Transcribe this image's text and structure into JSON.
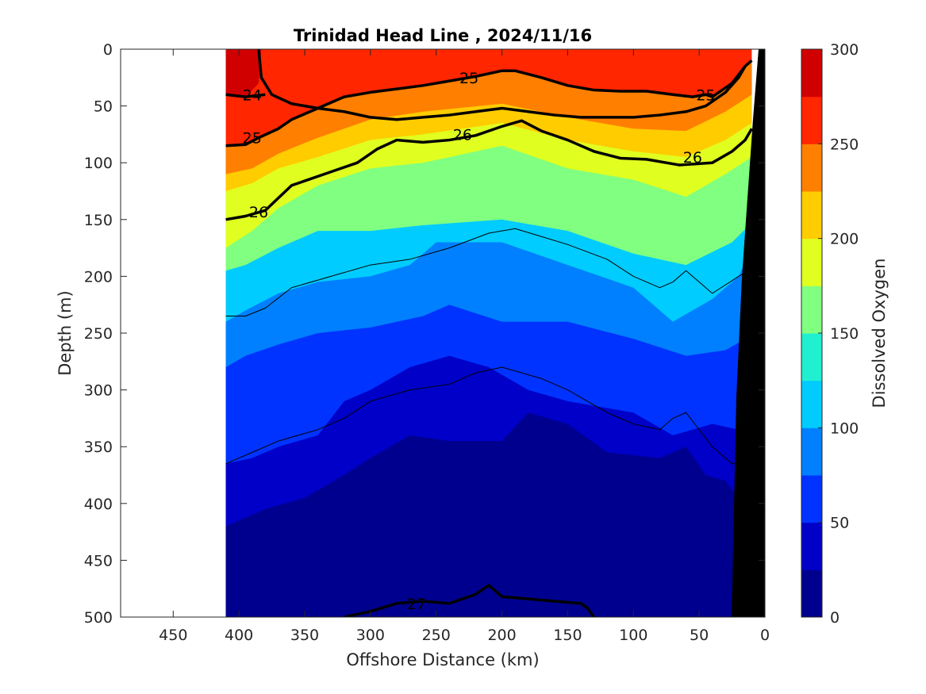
{
  "chart_data": {
    "type": "contour",
    "title": "Trinidad Head Line , 2024/11/16",
    "xlabel": "Offshore Distance (km)",
    "ylabel": "Depth (m)",
    "x_reversed": true,
    "y_reversed": true,
    "xlim": [
      0,
      490
    ],
    "ylim": [
      0,
      500
    ],
    "x_ticks": [
      450,
      400,
      350,
      300,
      250,
      200,
      150,
      100,
      50,
      0
    ],
    "y_ticks": [
      0,
      50,
      100,
      150,
      200,
      250,
      300,
      350,
      400,
      450,
      500
    ],
    "data_extent_km": [
      10,
      410
    ],
    "colorbar": {
      "label": "Dissolved Oxygen",
      "range": [
        0,
        300
      ],
      "ticks": [
        0,
        50,
        100,
        150,
        200,
        250,
        300
      ],
      "levels": [
        0,
        25,
        50,
        75,
        100,
        125,
        150,
        175,
        200,
        225,
        250,
        275,
        300
      ],
      "colors": [
        "#00008f",
        "#0000c8",
        "#0033ff",
        "#0080ff",
        "#00ccff",
        "#20f0d0",
        "#80ff80",
        "#e0ff20",
        "#ffcc00",
        "#ff7f00",
        "#ff2600",
        "#d00000"
      ]
    },
    "oxygen_contours": [
      {
        "level": 125,
        "points": [
          [
            410,
            195
          ],
          [
            395,
            190
          ],
          [
            370,
            175
          ],
          [
            340,
            160
          ],
          [
            300,
            160
          ],
          [
            260,
            155
          ],
          [
            200,
            150
          ],
          [
            150,
            160
          ],
          [
            100,
            180
          ],
          [
            60,
            190
          ],
          [
            25,
            170
          ],
          [
            12,
            155
          ]
        ]
      },
      {
        "level": 100,
        "points": [
          [
            410,
            240
          ],
          [
            395,
            230
          ],
          [
            370,
            215
          ],
          [
            340,
            205
          ],
          [
            300,
            200
          ],
          [
            270,
            190
          ],
          [
            250,
            170
          ],
          [
            200,
            170
          ],
          [
            150,
            190
          ],
          [
            100,
            210
          ],
          [
            70,
            240
          ],
          [
            40,
            220
          ],
          [
            20,
            200
          ],
          [
            12,
            180
          ]
        ]
      },
      {
        "level": 75,
        "points": [
          [
            410,
            280
          ],
          [
            395,
            270
          ],
          [
            370,
            260
          ],
          [
            340,
            250
          ],
          [
            300,
            245
          ],
          [
            260,
            235
          ],
          [
            240,
            225
          ],
          [
            200,
            240
          ],
          [
            150,
            240
          ],
          [
            100,
            255
          ],
          [
            60,
            270
          ],
          [
            30,
            265
          ],
          [
            15,
            255
          ],
          [
            12,
            250
          ]
        ]
      },
      {
        "level": 50,
        "points": [
          [
            410,
            365
          ],
          [
            390,
            360
          ],
          [
            370,
            350
          ],
          [
            340,
            340
          ],
          [
            320,
            310
          ],
          [
            300,
            300
          ],
          [
            270,
            280
          ],
          [
            240,
            270
          ],
          [
            210,
            280
          ],
          [
            180,
            300
          ],
          [
            150,
            310
          ],
          [
            100,
            320
          ],
          [
            70,
            340
          ],
          [
            40,
            330
          ],
          [
            20,
            335
          ],
          [
            12,
            340
          ]
        ]
      },
      {
        "level": 25,
        "points": [
          [
            410,
            420
          ],
          [
            380,
            405
          ],
          [
            350,
            395
          ],
          [
            320,
            375
          ],
          [
            300,
            360
          ],
          [
            270,
            340
          ],
          [
            240,
            345
          ],
          [
            200,
            345
          ],
          [
            180,
            320
          ],
          [
            150,
            330
          ],
          [
            120,
            355
          ],
          [
            80,
            360
          ],
          [
            60,
            350
          ],
          [
            45,
            375
          ],
          [
            30,
            380
          ],
          [
            20,
            395
          ],
          [
            15,
            420
          ]
        ]
      },
      {
        "level": 0,
        "points": [
          [
            330,
            500
          ],
          [
            300,
            495
          ],
          [
            270,
            490
          ],
          [
            230,
            470
          ],
          [
            200,
            470
          ],
          [
            170,
            480
          ],
          [
            150,
            460
          ],
          [
            120,
            460
          ],
          [
            90,
            480
          ],
          [
            70,
            475
          ],
          [
            50,
            490
          ],
          [
            40,
            500
          ]
        ]
      }
    ],
    "density_contours": [
      {
        "value": "24",
        "points": [
          [
            385,
            0
          ],
          [
            383,
            25
          ],
          [
            375,
            40
          ],
          [
            360,
            48
          ],
          [
            340,
            52
          ],
          [
            320,
            55
          ],
          [
            300,
            60
          ],
          [
            280,
            62
          ],
          [
            260,
            60
          ],
          [
            240,
            58
          ],
          [
            220,
            55
          ],
          [
            200,
            52
          ],
          [
            180,
            55
          ],
          [
            160,
            58
          ],
          [
            140,
            60
          ],
          [
            120,
            60
          ],
          [
            100,
            60
          ],
          [
            80,
            58
          ],
          [
            60,
            55
          ],
          [
            45,
            50
          ],
          [
            30,
            38
          ],
          [
            20,
            25
          ],
          [
            15,
            15
          ]
        ]
      },
      {
        "value": "24",
        "points": [
          [
            410,
            40
          ],
          [
            395,
            42
          ],
          [
            380,
            40
          ]
        ]
      },
      {
        "value": "25",
        "points": [
          [
            410,
            85
          ],
          [
            395,
            84
          ],
          [
            385,
            78
          ],
          [
            370,
            70
          ],
          [
            360,
            62
          ],
          [
            340,
            52
          ],
          [
            320,
            42
          ],
          [
            300,
            38
          ],
          [
            280,
            35
          ],
          [
            260,
            32
          ],
          [
            240,
            28
          ],
          [
            220,
            24
          ],
          [
            200,
            19
          ],
          [
            190,
            19
          ],
          [
            170,
            25
          ],
          [
            150,
            32
          ],
          [
            130,
            36
          ],
          [
            110,
            37
          ],
          [
            90,
            37
          ],
          [
            70,
            40
          ],
          [
            55,
            42
          ],
          [
            45,
            40
          ],
          [
            40,
            42
          ],
          [
            25,
            30
          ],
          [
            15,
            15
          ],
          [
            10,
            10
          ]
        ]
      },
      {
        "value": "26",
        "points": [
          [
            410,
            150
          ],
          [
            395,
            147
          ],
          [
            380,
            142
          ],
          [
            360,
            120
          ],
          [
            330,
            108
          ],
          [
            310,
            100
          ],
          [
            295,
            88
          ],
          [
            280,
            80
          ],
          [
            260,
            82
          ],
          [
            240,
            80
          ],
          [
            220,
            76
          ],
          [
            200,
            68
          ],
          [
            185,
            63
          ],
          [
            170,
            72
          ],
          [
            150,
            80
          ],
          [
            130,
            90
          ],
          [
            110,
            96
          ],
          [
            90,
            97
          ],
          [
            75,
            100
          ],
          [
            65,
            102
          ],
          [
            40,
            100
          ],
          [
            25,
            90
          ],
          [
            15,
            80
          ],
          [
            10,
            70
          ]
        ]
      },
      {
        "value": "26.5",
        "points": [
          [
            410,
            235
          ],
          [
            395,
            235
          ],
          [
            380,
            228
          ],
          [
            360,
            210
          ],
          [
            330,
            200
          ],
          [
            300,
            190
          ],
          [
            270,
            185
          ],
          [
            240,
            175
          ],
          [
            210,
            162
          ],
          [
            190,
            158
          ],
          [
            170,
            165
          ],
          [
            150,
            172
          ],
          [
            120,
            185
          ],
          [
            100,
            200
          ],
          [
            80,
            210
          ],
          [
            70,
            205
          ],
          [
            60,
            195
          ],
          [
            40,
            215
          ],
          [
            20,
            200
          ],
          [
            12,
            195
          ]
        ]
      },
      {
        "value": "26.8",
        "points": [
          [
            410,
            365
          ],
          [
            390,
            355
          ],
          [
            370,
            345
          ],
          [
            340,
            335
          ],
          [
            320,
            325
          ],
          [
            300,
            310
          ],
          [
            270,
            300
          ],
          [
            240,
            295
          ],
          [
            220,
            285
          ],
          [
            200,
            280
          ],
          [
            170,
            290
          ],
          [
            150,
            300
          ],
          [
            120,
            320
          ],
          [
            100,
            330
          ],
          [
            80,
            335
          ],
          [
            70,
            325
          ],
          [
            60,
            320
          ],
          [
            40,
            350
          ],
          [
            25,
            365
          ],
          [
            12,
            365
          ]
        ]
      },
      {
        "value": "27",
        "points": [
          [
            320,
            500
          ],
          [
            300,
            495
          ],
          [
            280,
            488
          ],
          [
            260,
            486
          ],
          [
            240,
            488
          ],
          [
            220,
            480
          ],
          [
            210,
            472
          ],
          [
            200,
            482
          ],
          [
            180,
            484
          ],
          [
            160,
            486
          ],
          [
            140,
            488
          ],
          [
            135,
            492
          ],
          [
            130,
            500
          ]
        ]
      }
    ],
    "contour_labels": [
      {
        "text": "24",
        "x": 390,
        "y": 40
      },
      {
        "text": "25",
        "x": 225,
        "y": 25
      },
      {
        "text": "25",
        "x": 45,
        "y": 40
      },
      {
        "text": "25",
        "x": 390,
        "y": 78
      },
      {
        "text": "26",
        "x": 230,
        "y": 75
      },
      {
        "text": "26",
        "x": 55,
        "y": 95
      },
      {
        "text": "26",
        "x": 385,
        "y": 143
      },
      {
        "text": "27",
        "x": 265,
        "y": 488
      }
    ],
    "seafloor": [
      [
        0,
        0
      ],
      [
        0,
        500
      ],
      [
        25,
        500
      ],
      [
        30,
        300
      ],
      [
        35,
        200
      ],
      [
        40,
        150
      ],
      [
        50,
        100
      ],
      [
        60,
        50
      ],
      [
        70,
        0
      ]
    ]
  }
}
